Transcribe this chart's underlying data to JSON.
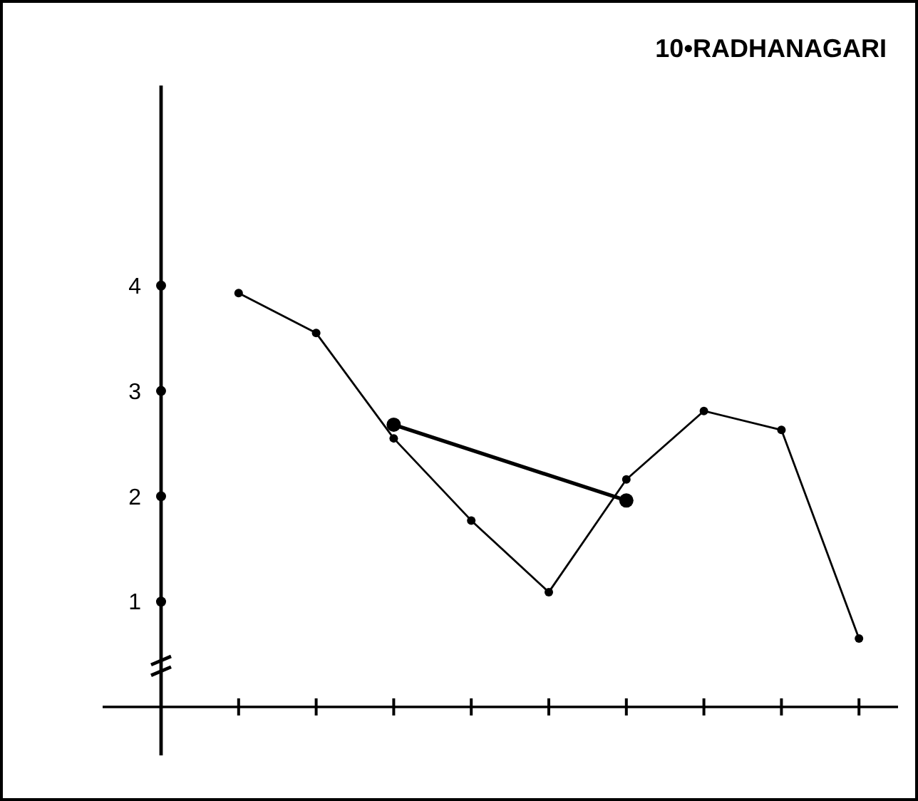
{
  "chart_data": {
    "type": "line",
    "title": "10•RADHANAGARI",
    "categories": [
      null,
      null,
      null,
      null,
      null,
      null,
      null,
      null,
      null
    ],
    "ylim": [
      -0.46,
      5.9
    ],
    "yticks": [
      1,
      2,
      3,
      4
    ],
    "grid": false,
    "series": [
      {
        "color": "#000000",
        "marker": "circle",
        "values": [
          3.93,
          3.55,
          2.55,
          1.77,
          1.09,
          2.16,
          2.81,
          2.63,
          0.65
        ]
      },
      {
        "type": "line",
        "color": "#000000",
        "marker": "circle",
        "values": [
          null,
          null,
          2.68,
          null,
          null,
          1.96,
          null,
          null,
          null
        ]
      }
    ]
  }
}
